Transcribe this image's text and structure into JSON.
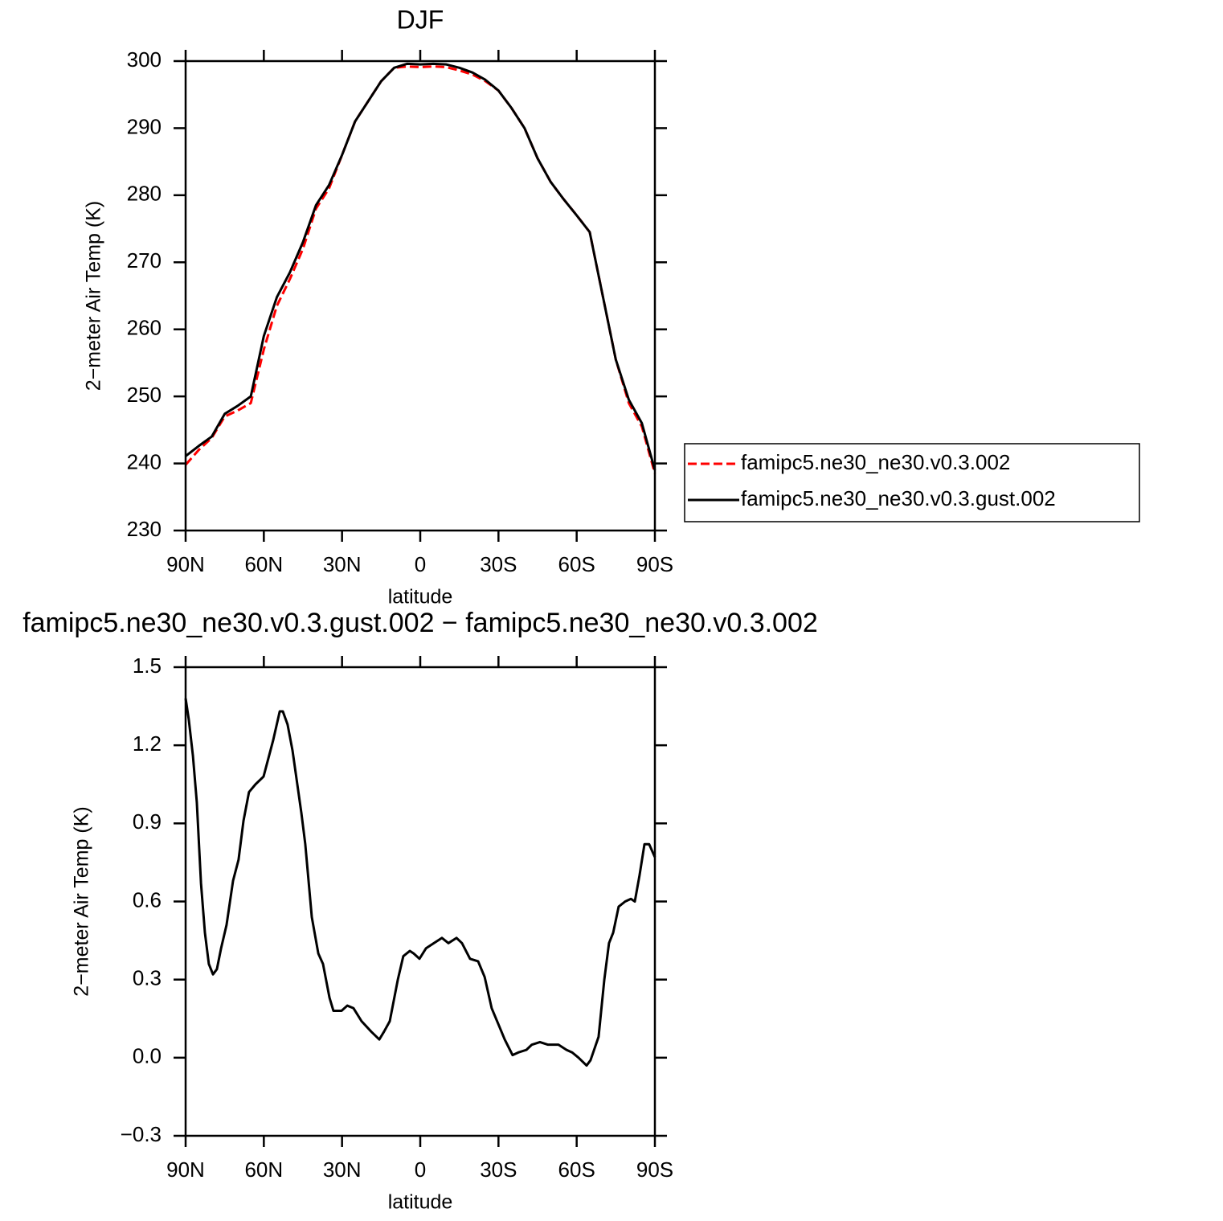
{
  "chart_data": [
    {
      "type": "line",
      "title": "DJF",
      "xlabel": "latitude",
      "ylabel": "2−meter Air Temp (K)",
      "x": [
        90,
        85,
        80,
        75,
        70,
        65,
        60,
        55,
        50,
        45,
        40,
        35,
        30,
        25,
        20,
        15,
        10,
        5,
        0,
        -5,
        -10,
        -15,
        -20,
        -25,
        -30,
        -35,
        -40,
        -45,
        -50,
        -55,
        -60,
        -65,
        -70,
        -75,
        -80,
        -85,
        -90
      ],
      "xlim": [
        90,
        -90
      ],
      "xticks": [
        {
          "value": 90,
          "label": "90N"
        },
        {
          "value": 60,
          "label": "60N"
        },
        {
          "value": 30,
          "label": "30N"
        },
        0,
        {
          "value": -30,
          "label": "30S"
        },
        {
          "value": -60,
          "label": "60S"
        },
        {
          "value": -90,
          "label": "90S"
        }
      ],
      "ylim": [
        230,
        300
      ],
      "yticks": [
        230,
        240,
        250,
        260,
        270,
        280,
        290,
        300
      ],
      "series": [
        {
          "name": "famipc5.ne30_ne30.v0.3.002",
          "color": "#ff0000",
          "style": "dashed",
          "values": [
            239.8,
            242,
            243.8,
            247,
            247.9,
            249,
            257,
            263.5,
            267.5,
            272,
            278,
            281,
            286,
            291,
            294,
            297,
            299,
            299.2,
            299.1,
            299.2,
            299.1,
            298.6,
            298,
            297,
            295.6,
            293,
            290,
            285.5,
            282,
            279.4,
            277,
            274.5,
            265,
            255.5,
            249,
            245.5,
            238.5
          ]
        },
        {
          "name": "famipc5.ne30_ne30.v0.3.gust.002",
          "color": "#000000",
          "style": "solid",
          "values": [
            241.1,
            242.6,
            244,
            247.4,
            248.6,
            250,
            259,
            264.8,
            268.5,
            273,
            278.5,
            281.5,
            286,
            291,
            294,
            297,
            299,
            299.6,
            299.5,
            299.6,
            299.5,
            299,
            298.3,
            297.2,
            295.6,
            293,
            290,
            285.5,
            282,
            279.4,
            277,
            274.5,
            265,
            255.5,
            249.5,
            246,
            239
          ]
        }
      ]
    },
    {
      "type": "line",
      "title": "famipc5.ne30_ne30.v0.3.gust.002 − famipc5.ne30_ne30.v0.3.002",
      "xlabel": "latitude",
      "ylabel": "2−meter Air Temp (K)",
      "x": [
        90,
        88.8,
        87.2,
        85.7,
        84.1,
        82.6,
        81.1,
        79.5,
        78,
        76.4,
        74.3,
        71.8,
        69.7,
        67.8,
        65.7,
        63.2,
        60.1,
        56.4,
        53.9,
        52.7,
        50.9,
        49,
        45.6,
        44.1,
        41.6,
        39.1,
        37.3,
        34.8,
        33.3,
        30.2,
        28,
        25.6,
        22.5,
        18.8,
        15.7,
        13.9,
        11.7,
        8.6,
        6.5,
        4,
        2.5,
        0.3,
        -2.2,
        -5.2,
        -8.3,
        -10.8,
        -13.9,
        -16,
        -19.1,
        -22.2,
        -24.7,
        -27.4,
        -29.9,
        -32.4,
        -35.4,
        -37.6,
        -40.7,
        -42.8,
        -45.9,
        -49,
        -53,
        -56.1,
        -58.3,
        -60.7,
        -63.8,
        -65.3,
        -68.4,
        -70.6,
        -72.4,
        -74,
        -76.1,
        -78.6,
        -80.8,
        -82.3,
        -84.1,
        -86,
        -87.8,
        -90
      ],
      "values": [
        1.38,
        1.3,
        1.16,
        0.98,
        0.67,
        0.48,
        0.36,
        0.32,
        0.34,
        0.42,
        0.51,
        0.68,
        0.76,
        0.91,
        1.02,
        1.05,
        1.08,
        1.22,
        1.33,
        1.33,
        1.28,
        1.18,
        0.94,
        0.82,
        0.54,
        0.4,
        0.36,
        0.23,
        0.18,
        0.18,
        0.2,
        0.19,
        0.14,
        0.1,
        0.07,
        0.1,
        0.14,
        0.3,
        0.39,
        0.41,
        0.4,
        0.38,
        0.42,
        0.44,
        0.46,
        0.44,
        0.46,
        0.44,
        0.38,
        0.37,
        0.31,
        0.19,
        0.13,
        0.07,
        0.01,
        0.02,
        0.03,
        0.05,
        0.06,
        0.05,
        0.05,
        0.03,
        0.02,
        0,
        -0.03,
        -0.01,
        0.08,
        0.3,
        0.44,
        0.48,
        0.58,
        0.6,
        0.61,
        0.6,
        0.7,
        0.82,
        0.82,
        0.77
      ],
      "color": "#000000",
      "xlim": [
        90,
        -90
      ],
      "xticks": [
        {
          "value": 90,
          "label": "90N"
        },
        {
          "value": 60,
          "label": "60N"
        },
        {
          "value": 30,
          "label": "30N"
        },
        0,
        {
          "value": -30,
          "label": "30S"
        },
        {
          "value": -60,
          "label": "60S"
        },
        {
          "value": -90,
          "label": "90S"
        }
      ],
      "ylim": [
        -0.3,
        1.5
      ],
      "yticks": [
        {
          "value": -0.3,
          "label": "−0.3"
        },
        {
          "value": 0,
          "label": "0.0"
        },
        0.3,
        0.6,
        0.9,
        1.2,
        1.5
      ]
    }
  ]
}
